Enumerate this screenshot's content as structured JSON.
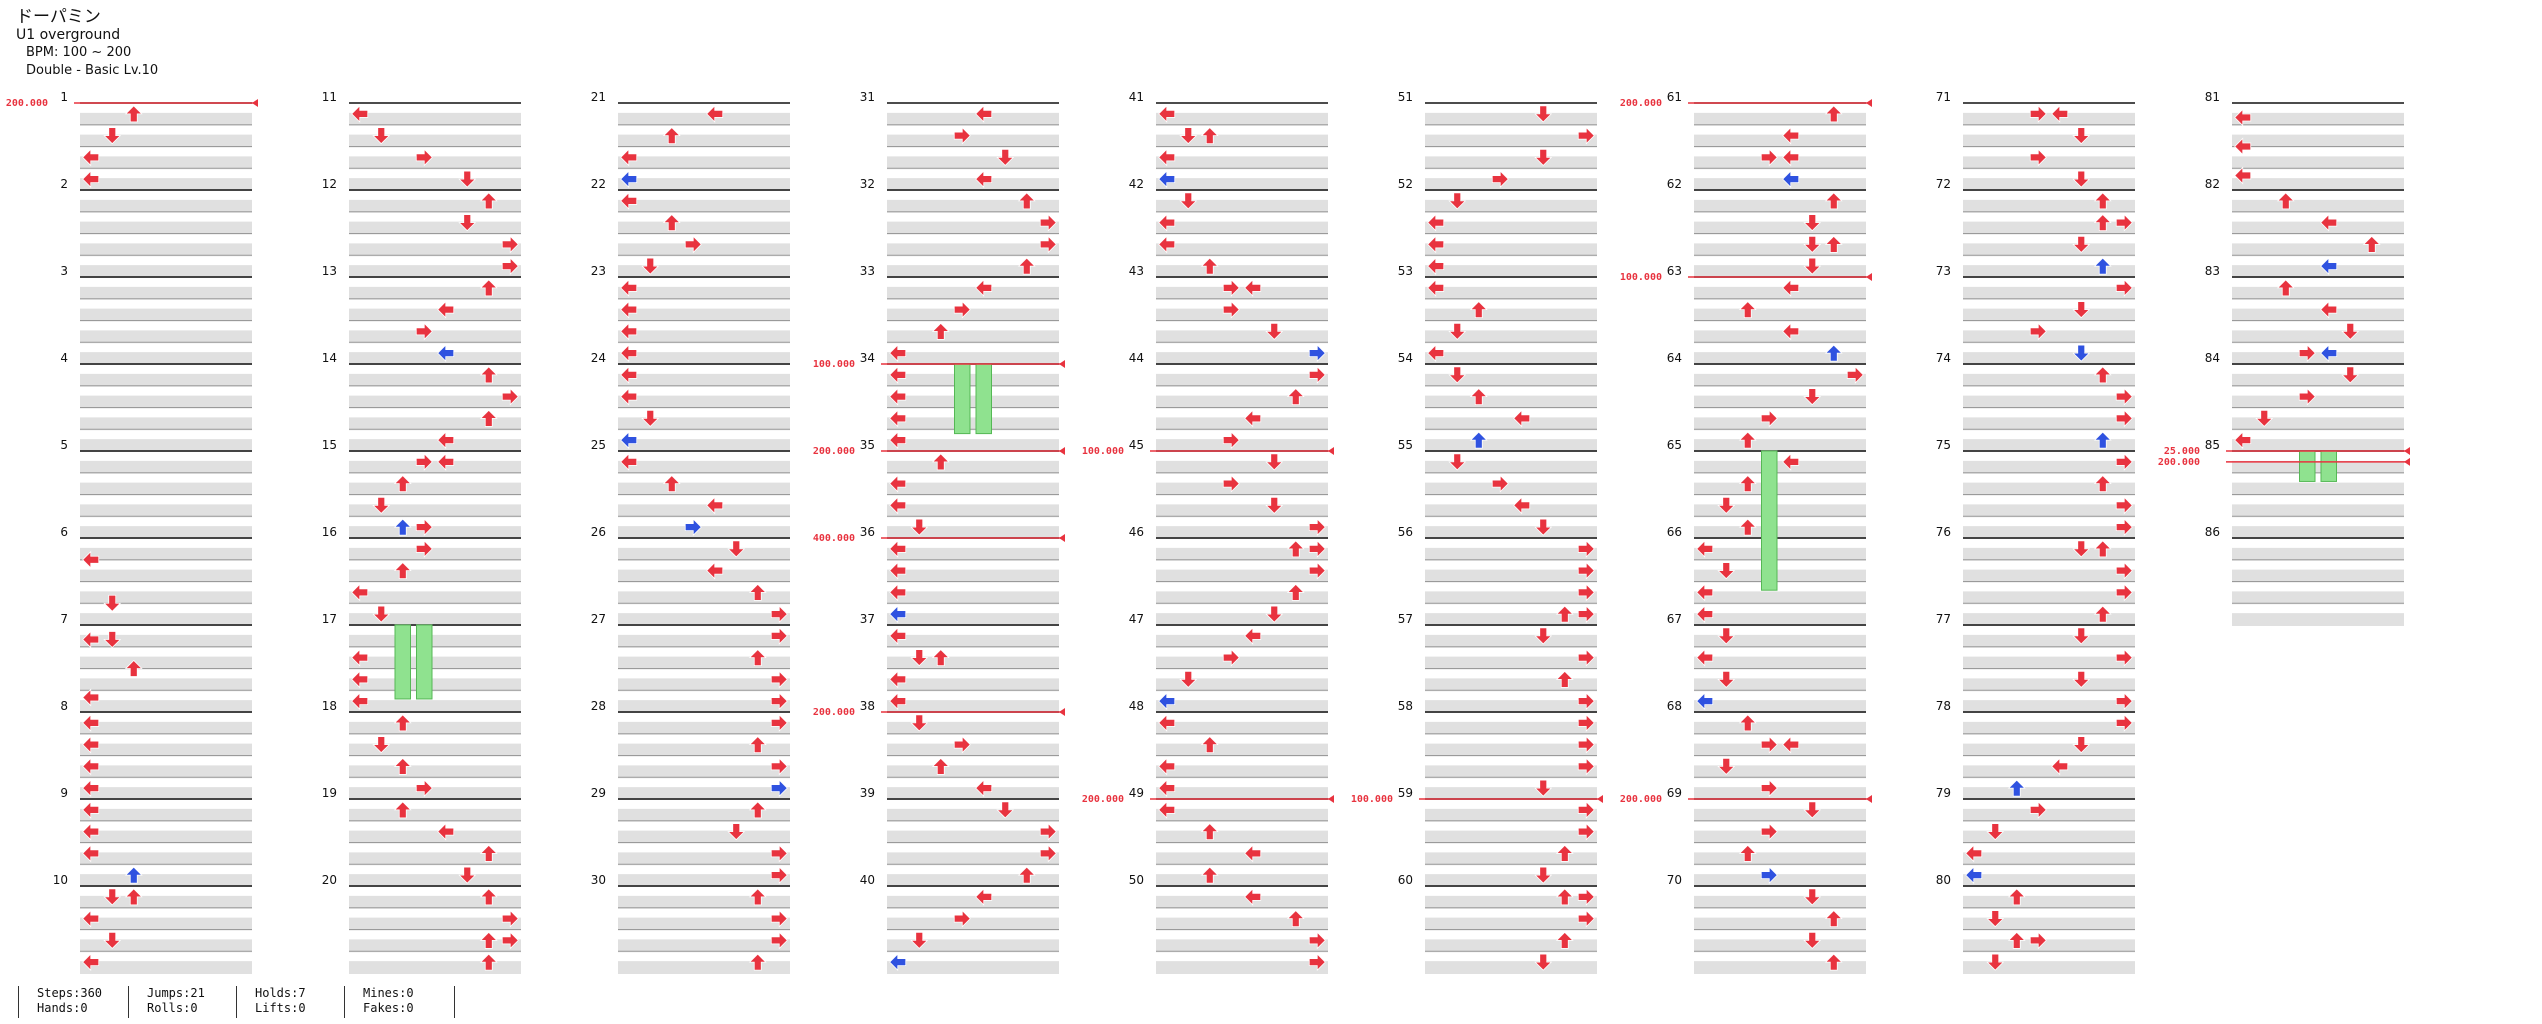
{
  "song": {
    "title": "ドーパミン",
    "artist": "U1 overground",
    "bpm_text": "BPM: 100 ~ 200",
    "difficulty": "Double - Basic Lv.10"
  },
  "colors": {
    "arrow_red": "#e8333f",
    "arrow_blue": "#2f52e0",
    "hold_green": "#8fe28f",
    "bpm_line": "#e8333f",
    "beat_band": "#e0e0e0",
    "measure_line": "#111111"
  },
  "measures": [
    "1",
    "2",
    "3",
    "4",
    "5",
    "6",
    "7",
    "8",
    "9",
    "10",
    "11",
    "12",
    "13",
    "14",
    "15",
    "16",
    "17",
    "18",
    "19",
    "20",
    "21",
    "22",
    "23",
    "24",
    "25",
    "26",
    "27",
    "28",
    "29",
    "30",
    "31",
    "32",
    "33",
    "34",
    "35",
    "36",
    "37",
    "38",
    "39",
    "40",
    "41",
    "42",
    "43",
    "44",
    "45",
    "46",
    "47",
    "48",
    "49",
    "50",
    "51",
    "52",
    "53",
    "54",
    "55",
    "56",
    "57",
    "58",
    "59",
    "60",
    "61",
    "62",
    "63",
    "64",
    "65",
    "66",
    "67",
    "68",
    "69",
    "70",
    "71",
    "72",
    "73",
    "74",
    "75",
    "76",
    "77",
    "78",
    "79",
    "80",
    "81",
    "82",
    "83",
    "84",
    "85",
    "86"
  ],
  "bpm_changes": [
    {
      "label": "200.000",
      "measure": 1.0
    },
    {
      "label": "100.000",
      "measure": 34.0
    },
    {
      "label": "200.000",
      "measure": 35.0
    },
    {
      "label": "400.000",
      "measure": 36.0
    },
    {
      "label": "200.000",
      "measure": 38.0
    },
    {
      "label": "100.000",
      "measure": 45.0
    },
    {
      "label": "200.000",
      "measure": 49.0
    },
    {
      "label": "100.000",
      "measure": 59.0
    },
    {
      "label": "200.000",
      "measure": 61.0
    },
    {
      "label": "100.000",
      "measure": 63.0
    },
    {
      "label": "200.000",
      "measure": 69.0
    },
    {
      "label": "25.000",
      "measure": 85.0
    },
    {
      "label": "200.000",
      "measure": 85.125
    }
  ],
  "stats": [
    {
      "a": "Steps:360",
      "b": "Hands:0"
    },
    {
      "a": "Jumps:21",
      "b": "Rolls:0"
    },
    {
      "a": "Holds:7",
      "b": "Lifts:0"
    },
    {
      "a": "Mines:0",
      "b": "Fakes:0"
    }
  ]
}
